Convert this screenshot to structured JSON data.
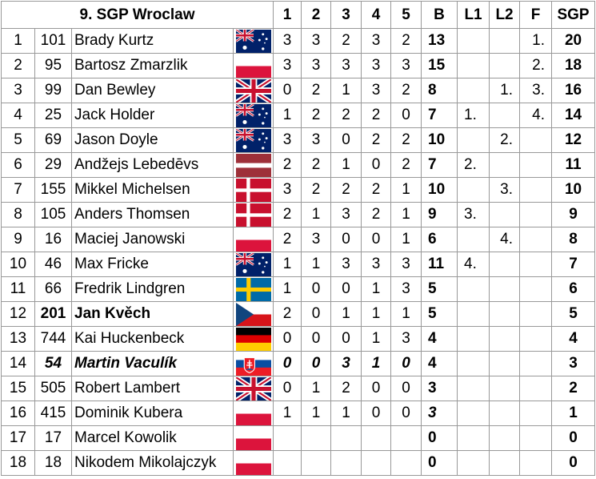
{
  "table": {
    "title": "9. SGP Wroclaw",
    "columns": [
      "1",
      "2",
      "3",
      "4",
      "5",
      "B",
      "L1",
      "L2",
      "F",
      "SGP"
    ],
    "rows": [
      [
        1,
        101,
        "Brady Kurtz",
        3,
        3,
        2,
        3,
        2,
        13,
        null,
        null,
        "1.",
        20
      ],
      [
        2,
        95,
        "Bartosz Zmarzlik",
        3,
        3,
        3,
        3,
        3,
        15,
        null,
        null,
        "2.",
        18
      ],
      [
        3,
        99,
        "Dan Bewley",
        0,
        2,
        1,
        3,
        2,
        8,
        null,
        "1.",
        "3.",
        16
      ],
      [
        4,
        25,
        "Jack Holder",
        1,
        2,
        2,
        2,
        0,
        7,
        "1.",
        null,
        "4.",
        14
      ],
      [
        5,
        69,
        "Jason Doyle",
        3,
        3,
        0,
        2,
        2,
        10,
        null,
        "2.",
        null,
        12
      ],
      [
        6,
        29,
        "Andžejs Lebedēvs",
        2,
        2,
        1,
        0,
        2,
        7,
        "2.",
        null,
        null,
        11
      ],
      [
        7,
        155,
        "Mikkel Michelsen",
        3,
        2,
        2,
        2,
        1,
        10,
        null,
        "3.",
        null,
        10
      ],
      [
        8,
        105,
        "Anders Thomsen",
        2,
        1,
        3,
        2,
        1,
        9,
        "3.",
        null,
        null,
        9
      ],
      [
        9,
        16,
        "Maciej Janowski",
        2,
        3,
        0,
        0,
        1,
        6,
        null,
        "4.",
        null,
        8
      ],
      [
        10,
        46,
        "Max Fricke",
        1,
        1,
        3,
        3,
        3,
        11,
        "4.",
        null,
        null,
        7
      ],
      [
        11,
        66,
        "Fredrik Lindgren",
        1,
        0,
        0,
        1,
        3,
        5,
        null,
        null,
        null,
        6
      ],
      [
        12,
        201,
        "Jan Kvěch",
        2,
        0,
        1,
        1,
        1,
        5,
        null,
        null,
        null,
        5
      ],
      [
        13,
        744,
        "Kai Huckenbeck",
        0,
        0,
        0,
        1,
        3,
        4,
        null,
        null,
        null,
        4
      ],
      [
        14,
        54,
        "Martin Vaculík",
        0,
        0,
        3,
        1,
        0,
        4,
        null,
        null,
        null,
        3
      ],
      [
        15,
        505,
        "Robert Lambert",
        0,
        1,
        2,
        0,
        0,
        3,
        null,
        null,
        null,
        2
      ],
      [
        16,
        415,
        "Dominik Kubera",
        1,
        1,
        1,
        0,
        0,
        3,
        null,
        null,
        null,
        1
      ],
      [
        17,
        17,
        "Marcel Kowolik",
        null,
        null,
        null,
        null,
        null,
        0,
        null,
        null,
        null,
        0
      ],
      [
        18,
        18,
        "Nikodem Mikolajczyk",
        null,
        null,
        null,
        null,
        null,
        0,
        null,
        null,
        null,
        0
      ]
    ]
  }
}
